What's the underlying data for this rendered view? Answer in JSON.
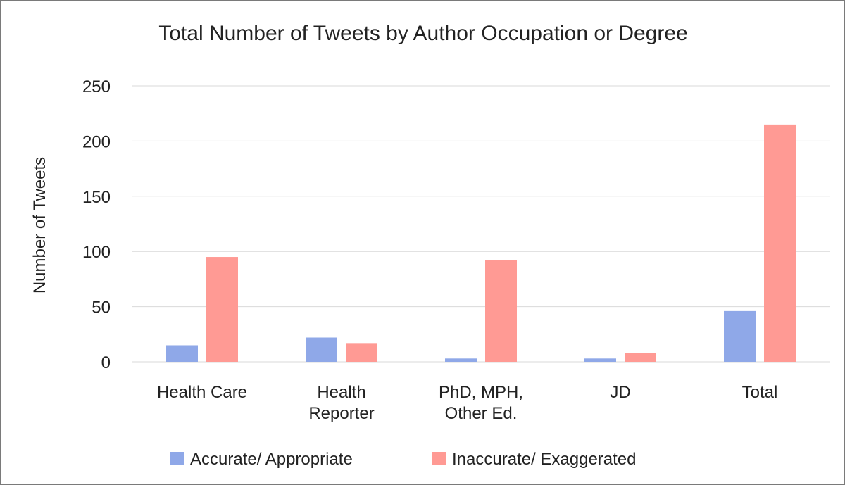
{
  "chart_data": {
    "type": "bar",
    "title": "Total Number of Tweets by Author Occupation or Degree",
    "xlabel": "",
    "ylabel": "Number of Tweets",
    "ylim": [
      0,
      250
    ],
    "yticks": [
      0,
      50,
      100,
      150,
      200,
      250
    ],
    "grid": true,
    "legend_position": "bottom",
    "categories": [
      [
        "Health Care"
      ],
      [
        "Health",
        "Reporter"
      ],
      [
        "PhD, MPH,",
        "Other Ed."
      ],
      [
        "JD"
      ],
      [
        "Total"
      ]
    ],
    "series": [
      {
        "name": "Accurate/ Appropriate",
        "color": "#8fa8e8",
        "values": [
          15,
          22,
          3,
          3,
          46
        ]
      },
      {
        "name": "Inaccurate/ Exaggerated",
        "color": "#ff9a94",
        "values": [
          95,
          17,
          92,
          8,
          215
        ]
      }
    ]
  }
}
